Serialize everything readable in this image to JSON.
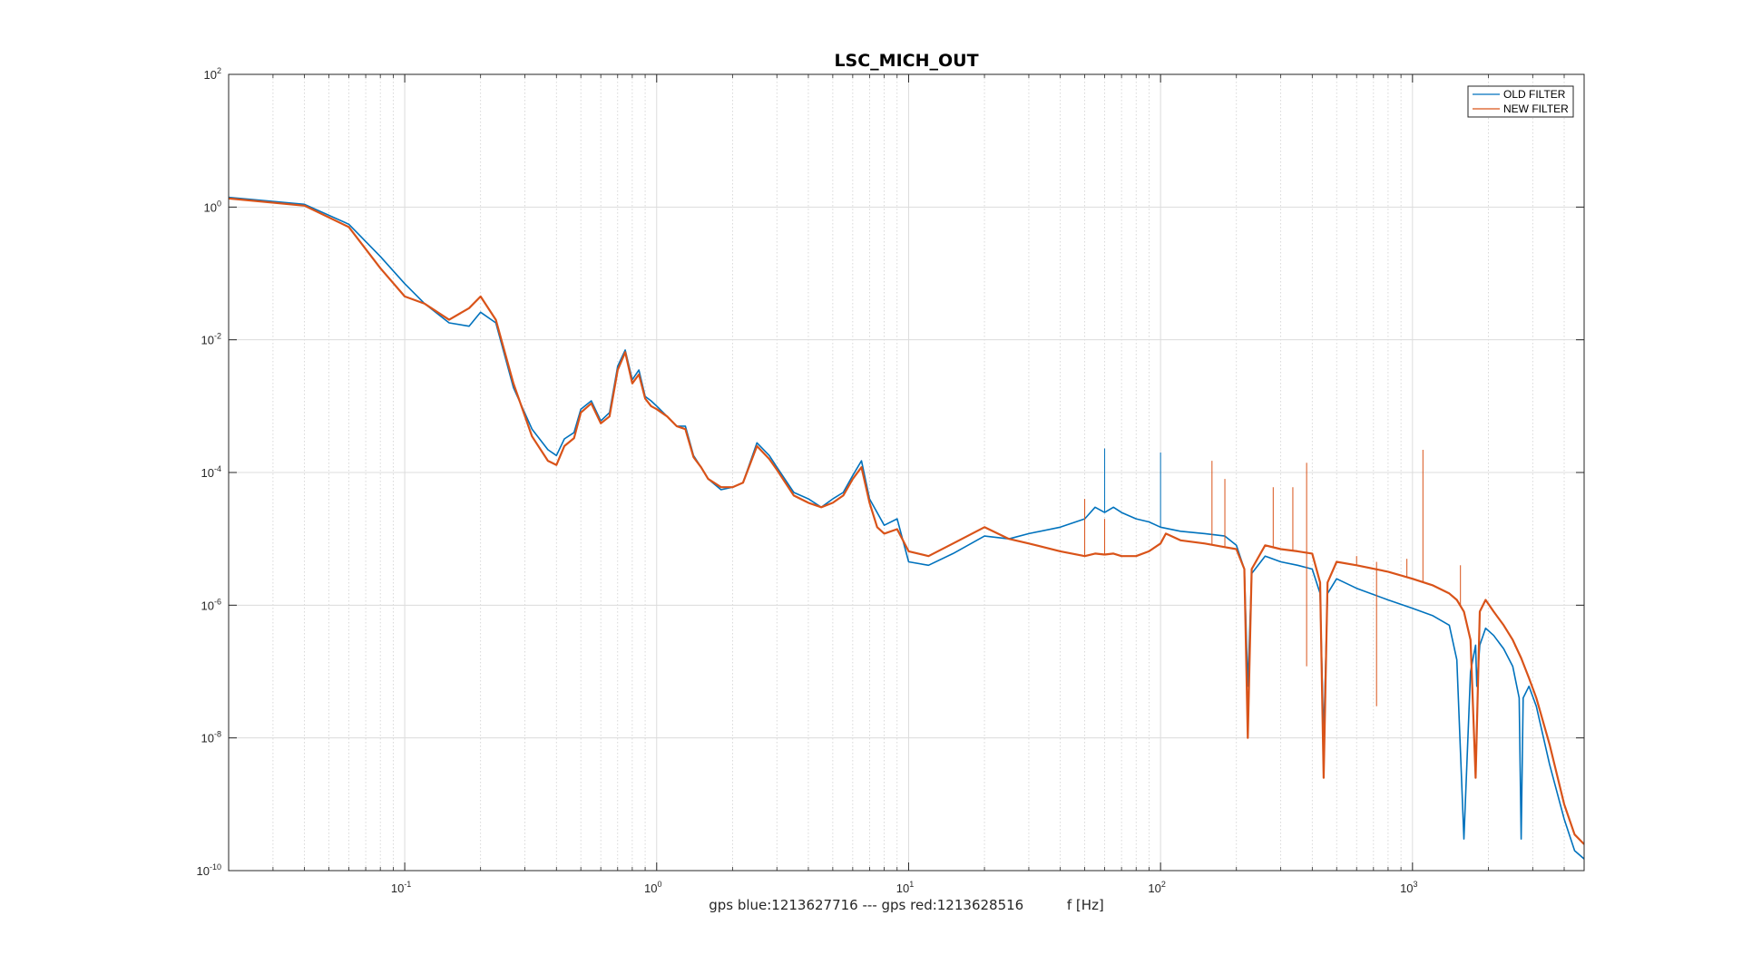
{
  "colors": {
    "old_filter": "#0072BD",
    "new_filter": "#D95319",
    "grid_major": "#dcdcdc",
    "grid_minor": "#cfcfcf",
    "axis": "#262626"
  },
  "chart_data": {
    "type": "line",
    "title": "LSC_MICH_OUT",
    "xlabel": "gps blue:1213627716 --- gps red:1213628516          f [Hz]",
    "ylabel": "",
    "xscale": "log",
    "yscale": "log",
    "xlim": [
      0.02,
      4800
    ],
    "ylim": [
      1e-10,
      100
    ],
    "grid": "major and minor (x)",
    "legend_position": "top-right",
    "x_ticks": [
      {
        "base": "10",
        "exp": "-1",
        "value": 0.1
      },
      {
        "base": "10",
        "exp": "0",
        "value": 1
      },
      {
        "base": "10",
        "exp": "1",
        "value": 10
      },
      {
        "base": "10",
        "exp": "2",
        "value": 100
      },
      {
        "base": "10",
        "exp": "3",
        "value": 1000
      }
    ],
    "y_ticks": [
      {
        "base": "10",
        "exp": "2",
        "value": 100
      },
      {
        "base": "10",
        "exp": "0",
        "value": 1
      },
      {
        "base": "10",
        "exp": "-2",
        "value": 0.01
      },
      {
        "base": "10",
        "exp": "-4",
        "value": 0.0001
      },
      {
        "base": "10",
        "exp": "-6",
        "value": 1e-06
      },
      {
        "base": "10",
        "exp": "-8",
        "value": 1e-08
      },
      {
        "base": "10",
        "exp": "-10",
        "value": 1e-10
      }
    ],
    "series": [
      {
        "name": "OLD FILTER",
        "color": "#0072BD",
        "x": [
          0.02,
          0.04,
          0.06,
          0.08,
          0.1,
          0.12,
          0.15,
          0.18,
          0.2,
          0.23,
          0.27,
          0.32,
          0.37,
          0.4,
          0.43,
          0.47,
          0.5,
          0.55,
          0.6,
          0.65,
          0.7,
          0.75,
          0.8,
          0.85,
          0.9,
          0.95,
          1.0,
          1.1,
          1.2,
          1.3,
          1.4,
          1.5,
          1.6,
          1.8,
          2.0,
          2.2,
          2.5,
          2.8,
          3.0,
          3.5,
          4.0,
          4.5,
          5.0,
          5.5,
          6.0,
          6.5,
          7.0,
          8.0,
          9.0,
          10,
          12,
          15,
          20,
          25,
          30,
          40,
          50,
          55,
          60,
          65,
          70,
          80,
          90,
          100,
          120,
          150,
          180,
          200,
          215,
          222,
          230,
          260,
          300,
          350,
          400,
          430,
          444,
          460,
          500,
          600,
          800,
          1000,
          1200,
          1400,
          1500,
          1600,
          1700,
          1780,
          1800,
          1850,
          1950,
          2100,
          2300,
          2500,
          2650,
          2700,
          2750,
          2900,
          3100,
          3500,
          4000,
          4400,
          4800
        ],
        "y": [
          1.4,
          1.1,
          0.55,
          0.18,
          0.07,
          0.035,
          0.018,
          0.016,
          0.026,
          0.018,
          0.0019,
          0.00045,
          0.00022,
          0.00018,
          0.00032,
          0.0004,
          0.0009,
          0.0012,
          0.0006,
          0.0008,
          0.004,
          0.007,
          0.0025,
          0.0035,
          0.0014,
          0.0012,
          0.001,
          0.0007,
          0.0005,
          0.0005,
          0.00018,
          0.00012,
          8e-05,
          5.5e-05,
          6e-05,
          7e-05,
          0.00028,
          0.00018,
          0.00012,
          5e-05,
          4e-05,
          3e-05,
          4e-05,
          5e-05,
          9e-05,
          0.00015,
          4e-05,
          1.6e-05,
          2e-05,
          4.5e-06,
          4e-06,
          6e-06,
          1.1e-05,
          1e-05,
          1.2e-05,
          1.5e-05,
          2e-05,
          3e-05,
          2.5e-05,
          3e-05,
          2.5e-05,
          2e-05,
          1.8e-05,
          1.5e-05,
          1.3e-05,
          1.2e-05,
          1.1e-05,
          8e-06,
          3.5e-06,
          6e-08,
          3e-06,
          5.5e-06,
          4.5e-06,
          4e-06,
          3.5e-06,
          1.5e-06,
          1e-08,
          1.5e-06,
          2.5e-06,
          1.8e-06,
          1.2e-06,
          9e-07,
          7e-07,
          5e-07,
          1.5e-07,
          3e-10,
          1e-07,
          2.5e-07,
          6e-08,
          2.5e-07,
          4.5e-07,
          3.5e-07,
          2.2e-07,
          1.2e-07,
          4e-08,
          3e-10,
          4e-08,
          6e-08,
          3e-08,
          4e-09,
          6e-10,
          2e-10,
          1.5e-10
        ]
      },
      {
        "name": "NEW FILTER",
        "color": "#D95319",
        "x": [
          0.02,
          0.04,
          0.06,
          0.08,
          0.1,
          0.12,
          0.15,
          0.18,
          0.2,
          0.23,
          0.27,
          0.32,
          0.37,
          0.4,
          0.43,
          0.47,
          0.5,
          0.55,
          0.6,
          0.65,
          0.7,
          0.75,
          0.8,
          0.85,
          0.9,
          0.95,
          1.0,
          1.1,
          1.2,
          1.3,
          1.4,
          1.5,
          1.6,
          1.8,
          2.0,
          2.2,
          2.5,
          2.8,
          3.0,
          3.5,
          4.0,
          4.5,
          5.0,
          5.5,
          6.0,
          6.5,
          7.0,
          7.5,
          8.0,
          9.0,
          10,
          12,
          15,
          20,
          25,
          30,
          40,
          50,
          55,
          60,
          65,
          70,
          80,
          90,
          100,
          105,
          120,
          150,
          180,
          200,
          215,
          222,
          230,
          260,
          300,
          350,
          400,
          430,
          444,
          460,
          500,
          600,
          800,
          1000,
          1200,
          1400,
          1500,
          1600,
          1700,
          1780,
          1850,
          1950,
          2100,
          2300,
          2500,
          2700,
          2900,
          3100,
          3500,
          4000,
          4400,
          4800
        ],
        "y": [
          1.35,
          1.05,
          0.5,
          0.12,
          0.045,
          0.035,
          0.02,
          0.03,
          0.045,
          0.02,
          0.0022,
          0.00035,
          0.00015,
          0.00013,
          0.00025,
          0.00033,
          0.0008,
          0.0011,
          0.00055,
          0.0007,
          0.0035,
          0.0065,
          0.0022,
          0.003,
          0.0013,
          0.001,
          0.0009,
          0.0007,
          0.0005,
          0.00045,
          0.00017,
          0.00012,
          8e-05,
          6e-05,
          6e-05,
          7e-05,
          0.00025,
          0.00016,
          0.00011,
          4.5e-05,
          3.5e-05,
          3e-05,
          3.5e-05,
          4.5e-05,
          8e-05,
          0.00012,
          3.5e-05,
          1.5e-05,
          1.2e-05,
          1.4e-05,
          6.5e-06,
          5.5e-06,
          8.5e-06,
          1.5e-05,
          1e-05,
          8.5e-06,
          6.5e-06,
          5.5e-06,
          6e-06,
          5.8e-06,
          6e-06,
          5.5e-06,
          5.5e-06,
          6.5e-06,
          8.5e-06,
          1.2e-05,
          9.5e-06,
          8.5e-06,
          7.5e-06,
          7e-06,
          3.5e-06,
          1e-08,
          3.5e-06,
          8e-06,
          7e-06,
          6.5e-06,
          6e-06,
          2.2e-06,
          2.5e-09,
          2.2e-06,
          4.5e-06,
          4e-06,
          3.2e-06,
          2.5e-06,
          2e-06,
          1.5e-06,
          1.2e-06,
          8e-07,
          3e-07,
          2.5e-09,
          8e-07,
          1.2e-06,
          8e-07,
          5e-07,
          3e-07,
          1.6e-07,
          8e-08,
          4e-08,
          8e-09,
          1e-09,
          3.5e-10,
          2.5e-10
        ]
      }
    ],
    "spikes": [
      {
        "series": "NEW FILTER",
        "x": 50,
        "y": 4e-05
      },
      {
        "series": "NEW FILTER",
        "x": 60,
        "y": 2e-05
      },
      {
        "series": "OLD FILTER",
        "x": 60,
        "y": 0.00023
      },
      {
        "series": "OLD FILTER",
        "x": 100,
        "y": 0.0002
      },
      {
        "series": "NEW FILTER",
        "x": 160,
        "y": 0.00015
      },
      {
        "series": "NEW FILTER",
        "x": 180,
        "y": 8e-05
      },
      {
        "series": "NEW FILTER",
        "x": 280,
        "y": 6e-05
      },
      {
        "series": "NEW FILTER",
        "x": 335,
        "y": 6e-05
      },
      {
        "series": "NEW FILTER",
        "x": 380,
        "y": 0.00014
      },
      {
        "series": "NEW FILTER",
        "x": 380,
        "y": 1.2e-07
      },
      {
        "series": "NEW FILTER",
        "x": 600,
        "y": 5.5e-06
      },
      {
        "series": "NEW FILTER",
        "x": 720,
        "y": 4.5e-06
      },
      {
        "series": "NEW FILTER",
        "x": 720,
        "y": 3e-08
      },
      {
        "series": "NEW FILTER",
        "x": 950,
        "y": 5e-06
      },
      {
        "series": "NEW FILTER",
        "x": 1100,
        "y": 0.00022
      },
      {
        "series": "NEW FILTER",
        "x": 1550,
        "y": 4e-06
      },
      {
        "series": "NEW FILTER",
        "x": 2550,
        "y": 2.4e-07
      }
    ]
  }
}
